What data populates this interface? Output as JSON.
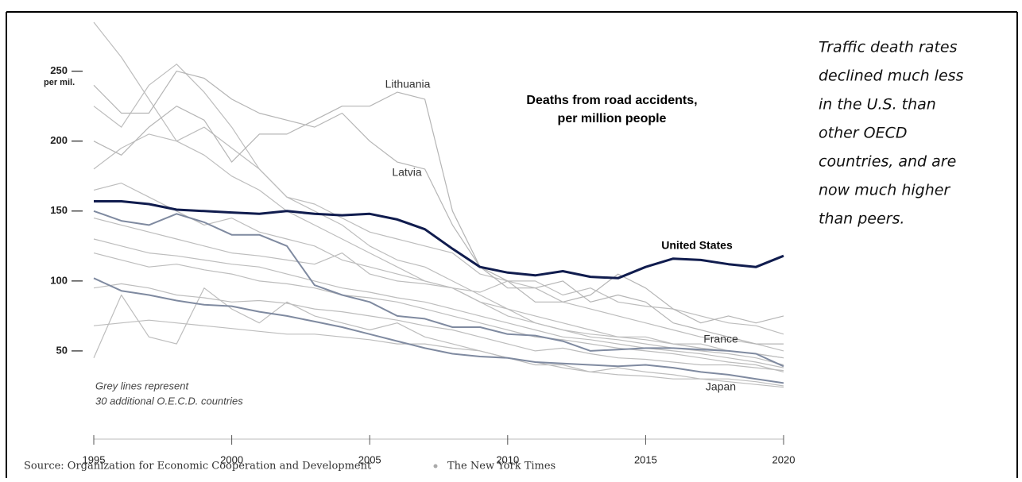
{
  "chart_data": {
    "type": "line",
    "title": "Deaths from road accidents,",
    "subtitle": "per million people",
    "y_unit_label": "per mil.",
    "annotations": [
      "Grey lines represent",
      "30 additional O.E.C.D. countries"
    ],
    "side_text": [
      "Traffic death rates",
      "declined much less",
      "in the U.S. than",
      "other OECD",
      "countries, and are",
      "now much higher",
      "than peers."
    ],
    "source": "Source: Organization for Economic Cooperation and Development",
    "credit": "The New York Times",
    "x": [
      1995,
      1996,
      1997,
      1998,
      1999,
      2000,
      2001,
      2002,
      2003,
      2004,
      2005,
      2006,
      2007,
      2008,
      2009,
      2010,
      2011,
      2012,
      2013,
      2014,
      2015,
      2016,
      2017,
      2018,
      2019,
      2020
    ],
    "xlim": [
      1995,
      2020
    ],
    "xticks": [
      1995,
      2000,
      2005,
      2010,
      2015,
      2020
    ],
    "ylim": [
      0,
      285
    ],
    "yticks": [
      50,
      100,
      150,
      200,
      250
    ],
    "grid": false,
    "series": [
      {
        "color": "#bdbdbd",
        "values": [
          285,
          260,
          230,
          200,
          190,
          175,
          165,
          150,
          140,
          130,
          120,
          110,
          100,
          95,
          85,
          75,
          70,
          65,
          60,
          58,
          55,
          52,
          50,
          48,
          45,
          40
        ]
      },
      {
        "color": "#bdbdbd",
        "values": [
          180,
          195,
          205,
          200,
          210,
          195,
          180,
          160,
          150,
          140,
          125,
          115,
          110,
          100,
          90,
          80,
          75,
          70,
          65,
          60,
          60,
          55,
          55,
          50,
          48,
          45
        ]
      },
      {
        "color": "#bdbdbd",
        "values": [
          165,
          170,
          160,
          150,
          140,
          145,
          135,
          130,
          125,
          115,
          110,
          105,
          100,
          95,
          85,
          80,
          70,
          65,
          62,
          60,
          58,
          55,
          52,
          50,
          48,
          45
        ]
      },
      {
        "color": "#bdbdbd",
        "values": [
          130,
          125,
          120,
          118,
          115,
          112,
          110,
          105,
          100,
          95,
          92,
          88,
          85,
          80,
          75,
          70,
          65,
          60,
          58,
          55,
          52,
          50,
          48,
          45,
          42,
          38
        ]
      },
      {
        "color": "#bdbdbd",
        "values": [
          120,
          115,
          110,
          112,
          108,
          105,
          100,
          98,
          95,
          90,
          88,
          85,
          80,
          75,
          70,
          65,
          60,
          58,
          55,
          52,
          50,
          48,
          45,
          42,
          40,
          35
        ]
      },
      {
        "color": "#bdbdbd",
        "values": [
          68,
          70,
          72,
          70,
          68,
          66,
          64,
          62,
          62,
          60,
          58,
          55,
          55,
          52,
          50,
          45,
          42,
          38,
          35,
          33,
          32,
          30,
          30,
          28,
          26,
          24
        ]
      },
      {
        "color": "#bdbdbd",
        "values": [
          45,
          90,
          60,
          55,
          95,
          80,
          70,
          85,
          75,
          70,
          65,
          70,
          60,
          55,
          50,
          45,
          40,
          40,
          35,
          38,
          35,
          33,
          30,
          30,
          28,
          25
        ]
      },
      {
        "color": "#bdbdbd",
        "values": [
          225,
          210,
          240,
          255,
          235,
          210,
          180,
          160,
          155,
          145,
          135,
          130,
          125,
          120,
          105,
          100,
          100,
          90,
          95,
          85,
          82,
          80,
          75,
          70,
          68,
          62
        ]
      },
      {
        "color": "#bdbdbd",
        "values": [
          145,
          140,
          135,
          130,
          125,
          120,
          118,
          115,
          112,
          120,
          105,
          100,
          98,
          95,
          92,
          100,
          95,
          85,
          80,
          75,
          70,
          65,
          60,
          58,
          55,
          50
        ]
      },
      {
        "color": "#bdbdbd",
        "values": [
          95,
          98,
          95,
          90,
          88,
          85,
          86,
          84,
          80,
          78,
          75,
          72,
          68,
          65,
          60,
          55,
          50,
          52,
          48,
          45,
          44,
          42,
          40,
          40,
          38,
          36
        ]
      },
      {
        "name": "Lithuania",
        "color": "#b5b5b5",
        "values": [
          200,
          190,
          210,
          225,
          215,
          185,
          205,
          205,
          215,
          225,
          225,
          235,
          230,
          150,
          110,
          95,
          95,
          100,
          85,
          90,
          85,
          70,
          65,
          60,
          55,
          55
        ]
      },
      {
        "name": "Latvia",
        "color": "#b5b5b5",
        "values": [
          240,
          220,
          220,
          250,
          245,
          230,
          220,
          215,
          210,
          220,
          200,
          185,
          180,
          140,
          110,
          100,
          85,
          85,
          90,
          105,
          95,
          80,
          70,
          75,
          70,
          75
        ]
      },
      {
        "name": "France",
        "color": "#7f8aa0",
        "values": [
          150,
          143,
          140,
          148,
          142,
          133,
          133,
          125,
          97,
          90,
          85,
          75,
          73,
          67,
          67,
          62,
          61,
          57,
          50,
          51,
          52,
          52,
          51,
          50,
          48,
          39
        ]
      },
      {
        "name": "Japan",
        "color": "#7f8aa0",
        "values": [
          102,
          93,
          90,
          86,
          83,
          82,
          78,
          75,
          71,
          67,
          62,
          57,
          52,
          48,
          46,
          45,
          42,
          41,
          40,
          39,
          40,
          38,
          35,
          33,
          30,
          27
        ]
      },
      {
        "name": "United States",
        "color": "#101c4e",
        "values": [
          157,
          157,
          155,
          151,
          150,
          149,
          148,
          150,
          148,
          147,
          148,
          144,
          137,
          123,
          110,
          106,
          104,
          107,
          103,
          102,
          110,
          116,
          115,
          112,
          110,
          118
        ]
      }
    ]
  }
}
